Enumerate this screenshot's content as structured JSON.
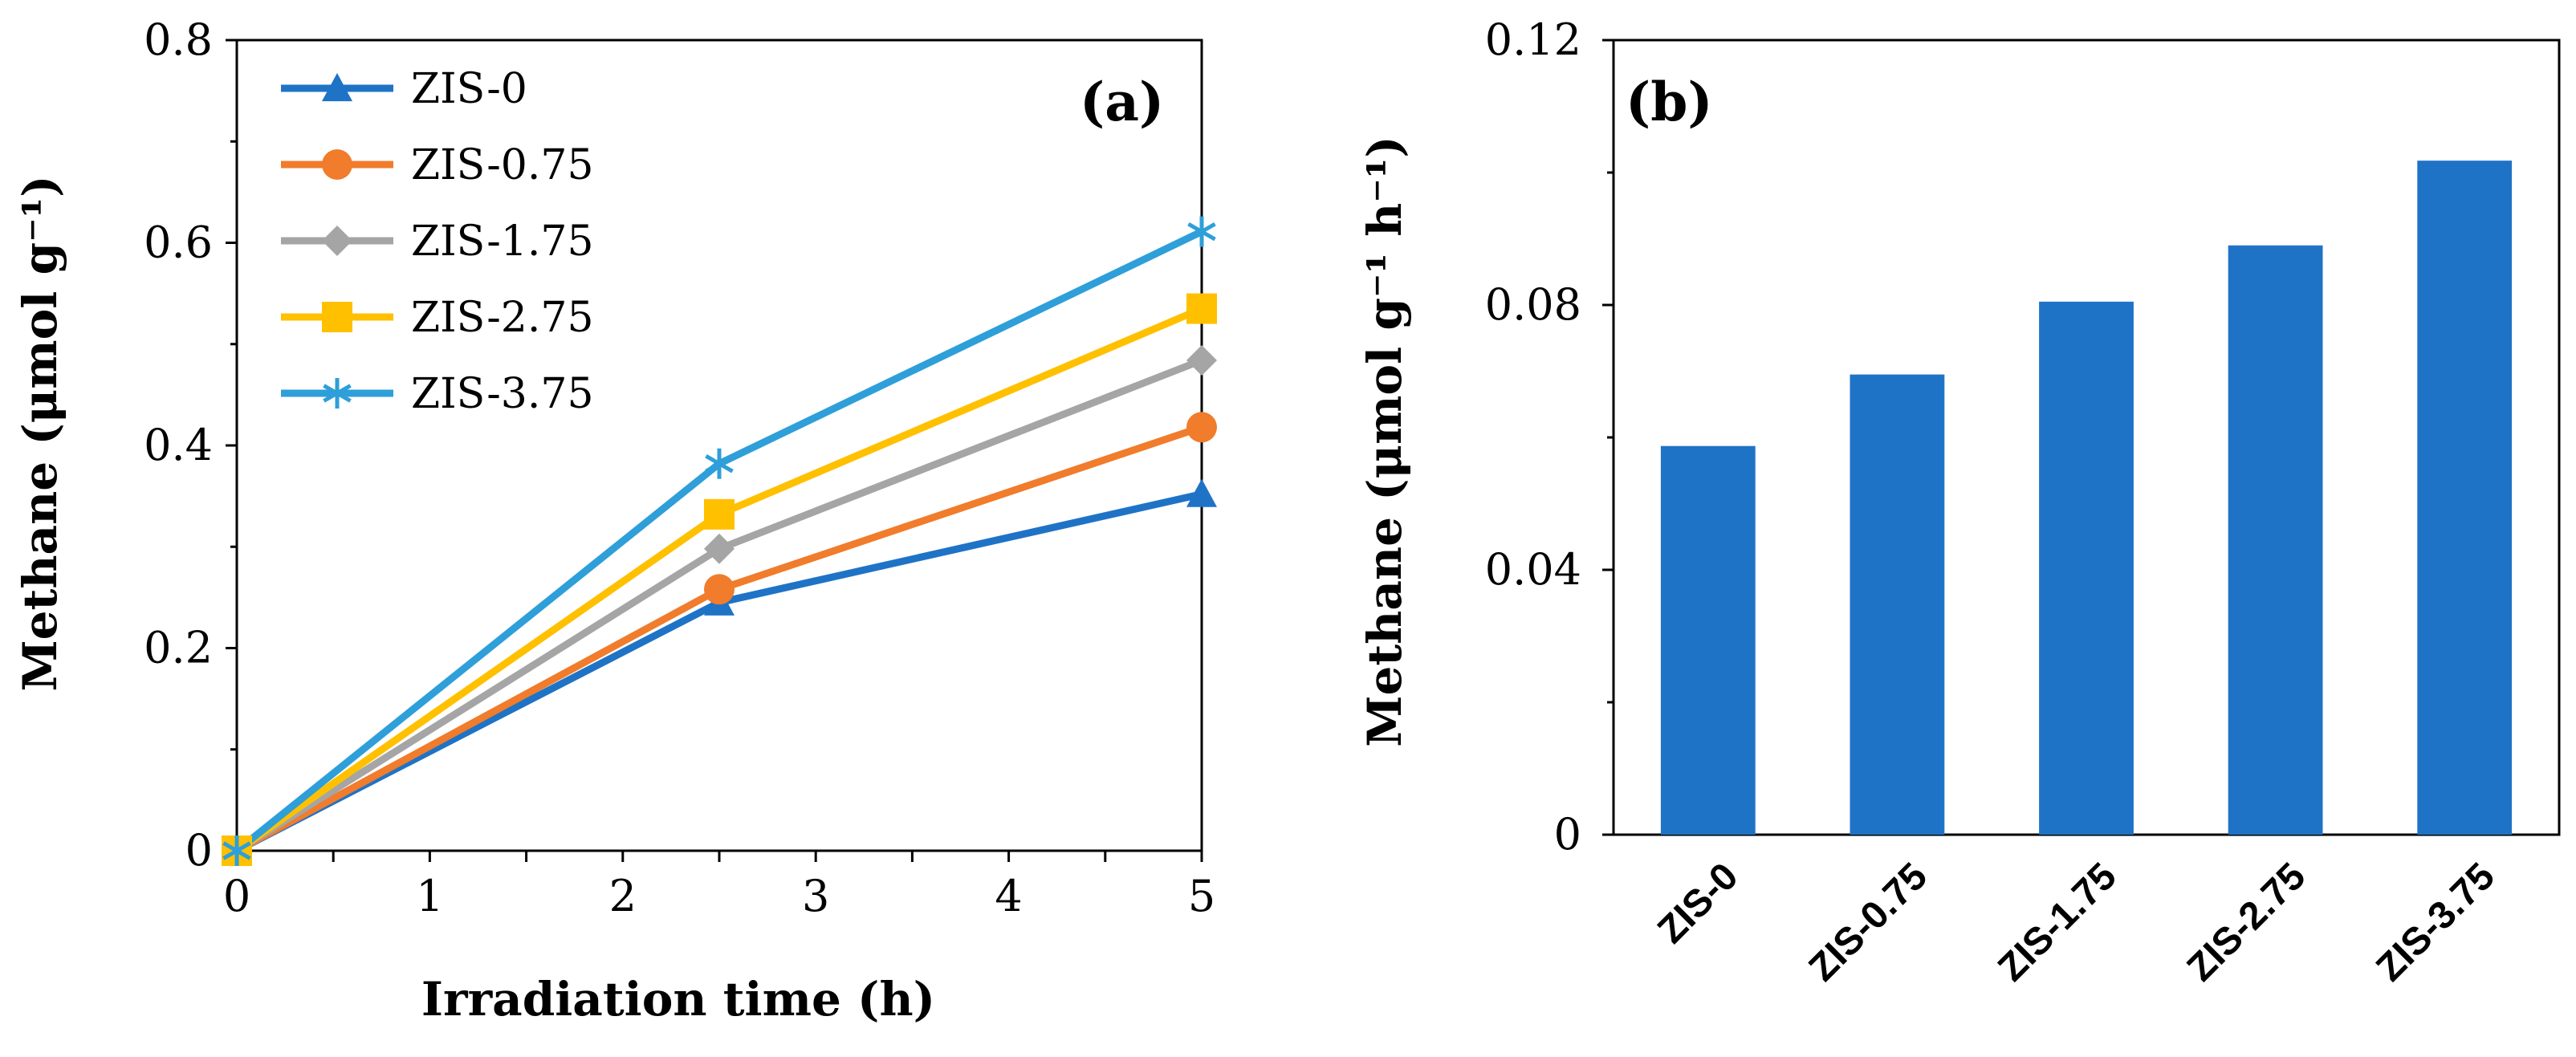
{
  "chart_data": [
    {
      "type": "line",
      "panel_label": "(a)",
      "xlabel": "Irradiation time (h)",
      "ylabel": "Methane (μmol g⁻¹)",
      "xlim": [
        0,
        5
      ],
      "ylim": [
        0,
        0.8
      ],
      "xticks": [
        "0",
        "1",
        "2",
        "3",
        "4",
        "5"
      ],
      "yticks": [
        "0",
        "0.2",
        "0.4",
        "0.6",
        "0.8"
      ],
      "legend_position": "top-left",
      "grid": false,
      "x": [
        0,
        2.5,
        5
      ],
      "series": [
        {
          "name": "ZIS-0",
          "values": [
            0,
            0.245,
            0.352
          ],
          "color": "#1f73c6",
          "marker": "triangle"
        },
        {
          "name": "ZIS-0.75",
          "values": [
            0,
            0.258,
            0.418
          ],
          "color": "#f07c2c",
          "marker": "circle"
        },
        {
          "name": "ZIS-1.75",
          "values": [
            0,
            0.298,
            0.484
          ],
          "color": "#a5a5a5",
          "marker": "diamond"
        },
        {
          "name": "ZIS-2.75",
          "values": [
            0,
            0.332,
            0.535
          ],
          "color": "#ffc000",
          "marker": "square"
        },
        {
          "name": "ZIS-3.75",
          "values": [
            0,
            0.382,
            0.611
          ],
          "color": "#2e9fd9",
          "marker": "asterisk"
        }
      ]
    },
    {
      "type": "bar",
      "panel_label": "(b)",
      "xlabel": "",
      "ylabel": "Methane (μmol g⁻¹ h⁻¹)",
      "ylim": [
        0,
        0.12
      ],
      "yticks": [
        "0",
        "0.04",
        "0.08",
        "0.12"
      ],
      "categories": [
        "ZIS-0",
        "ZIS-0.75",
        "ZIS-1.75",
        "ZIS-2.75",
        "ZIS-3.75"
      ],
      "values": [
        0.0587,
        0.0695,
        0.0805,
        0.089,
        0.1018
      ],
      "color": "#1f73c6",
      "grid": false
    }
  ]
}
